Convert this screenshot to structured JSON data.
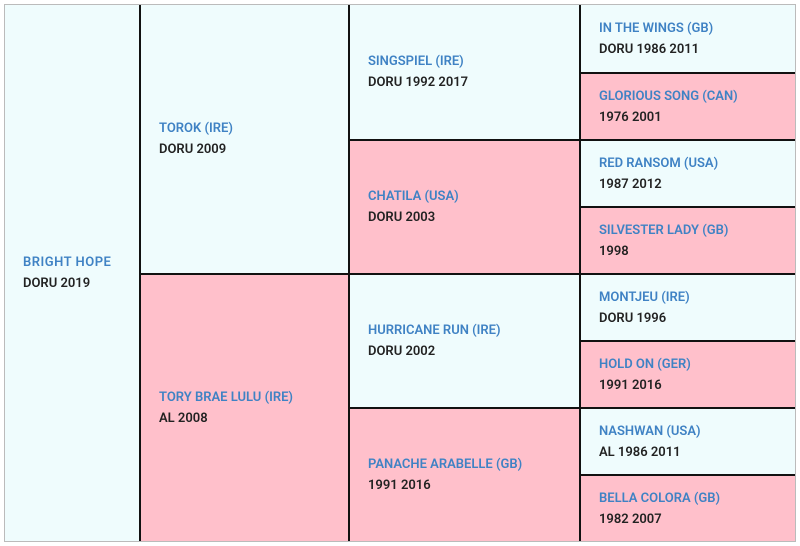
{
  "pedigree": {
    "columns": [
      [
        {
          "name": "BRIGHT HOPE",
          "detail": "DORU 2019"
        }
      ],
      [
        {
          "name": "TOROK (IRE)",
          "detail": "DORU 2009"
        },
        {
          "name": "TORY BRAE LULU (IRE)",
          "detail": "AL 2008"
        }
      ],
      [
        {
          "name": "SINGSPIEL (IRE)",
          "detail": "DORU 1992 2017"
        },
        {
          "name": "CHATILA (USA)",
          "detail": "DORU 2003"
        },
        {
          "name": "HURRICANE RUN (IRE)",
          "detail": "DORU 2002"
        },
        {
          "name": "PANACHE ARABELLE (GB)",
          "detail": "1991 2016"
        }
      ],
      [
        {
          "name": "IN THE WINGS (GB)",
          "detail": "DORU 1986 2011"
        },
        {
          "name": "GLORIOUS SONG (CAN)",
          "detail": "1976 2001"
        },
        {
          "name": "RED RANSOM (USA)",
          "detail": "1987 2012"
        },
        {
          "name": "SILVESTER LADY (GB)",
          "detail": "1998"
        },
        {
          "name": "MONTJEU (IRE)",
          "detail": "DORU 1996"
        },
        {
          "name": "HOLD ON (GER)",
          "detail": "1991 2016"
        },
        {
          "name": "NASHWAN (USA)",
          "detail": "AL 1986 2011"
        },
        {
          "name": "BELLA COLORA (GB)",
          "detail": "1982 2007"
        }
      ]
    ]
  }
}
